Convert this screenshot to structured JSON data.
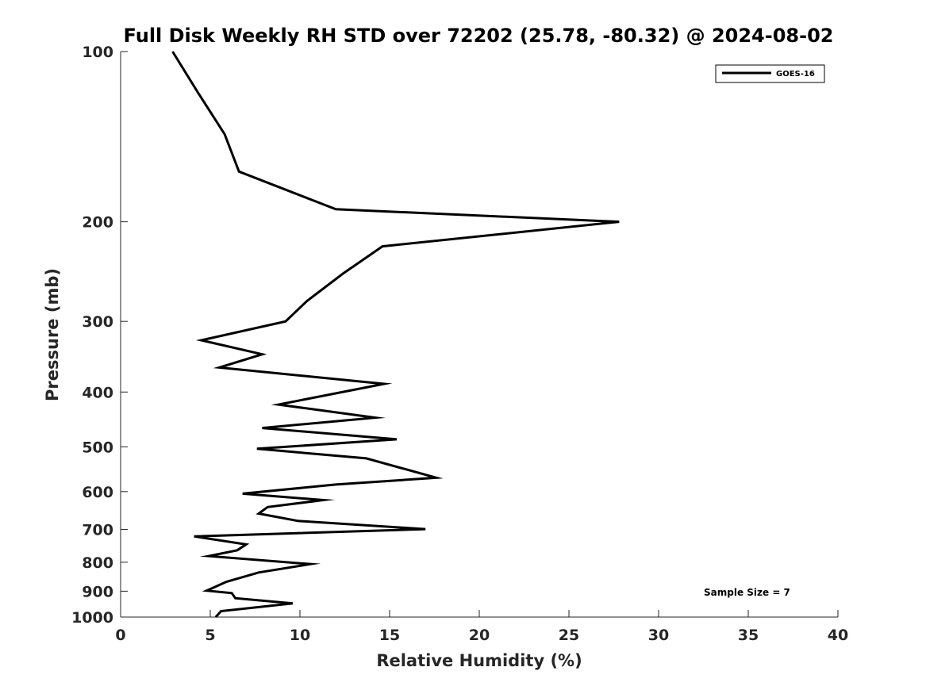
{
  "chart_data": {
    "type": "line",
    "title": "Full Disk Weekly RH STD over 72202 (25.78, -80.32) @ 2024-08-02",
    "xlabel": "Relative Humidity (%)",
    "ylabel": "Pressure (mb)",
    "xlim": [
      0,
      40
    ],
    "ylim": [
      100,
      1000
    ],
    "yscale": "log",
    "y_reversed": true,
    "xticks": [
      0,
      5,
      10,
      15,
      20,
      25,
      30,
      35,
      40
    ],
    "yticks": [
      100,
      200,
      300,
      400,
      500,
      600,
      700,
      800,
      900,
      1000
    ],
    "legend": {
      "location": "top-right",
      "entries": [
        "GOES-16"
      ]
    },
    "annotation": "Sample Size = 7",
    "series": [
      {
        "name": "GOES-16",
        "color": "#000000",
        "points": [
          [
            2.9,
            100
          ],
          [
            4.3,
            118
          ],
          [
            5.8,
            140
          ],
          [
            6.6,
            163
          ],
          [
            12.0,
            190
          ],
          [
            27.8,
            200
          ],
          [
            14.6,
            221
          ],
          [
            12.4,
            247
          ],
          [
            10.4,
            276
          ],
          [
            9.2,
            300
          ],
          [
            4.5,
            324
          ],
          [
            7.9,
            343
          ],
          [
            5.5,
            362
          ],
          [
            14.7,
            387
          ],
          [
            8.8,
            421
          ],
          [
            14.2,
            444
          ],
          [
            7.9,
            463
          ],
          [
            15.4,
            485
          ],
          [
            7.6,
            504
          ],
          [
            13.7,
            524
          ],
          [
            17.6,
            567
          ],
          [
            12.0,
            583
          ],
          [
            6.8,
            605
          ],
          [
            11.3,
            621
          ],
          [
            8.2,
            639
          ],
          [
            7.7,
            656
          ],
          [
            9.9,
            676
          ],
          [
            17.0,
            699
          ],
          [
            4.1,
            720
          ],
          [
            7.0,
            744
          ],
          [
            6.5,
            762
          ],
          [
            4.9,
            780
          ],
          [
            10.6,
            806
          ],
          [
            7.7,
            834
          ],
          [
            5.9,
            866
          ],
          [
            4.8,
            898
          ],
          [
            6.2,
            907
          ],
          [
            6.4,
            926
          ],
          [
            9.6,
            946
          ],
          [
            5.6,
            976
          ],
          [
            5.3,
            1000
          ]
        ]
      }
    ]
  }
}
